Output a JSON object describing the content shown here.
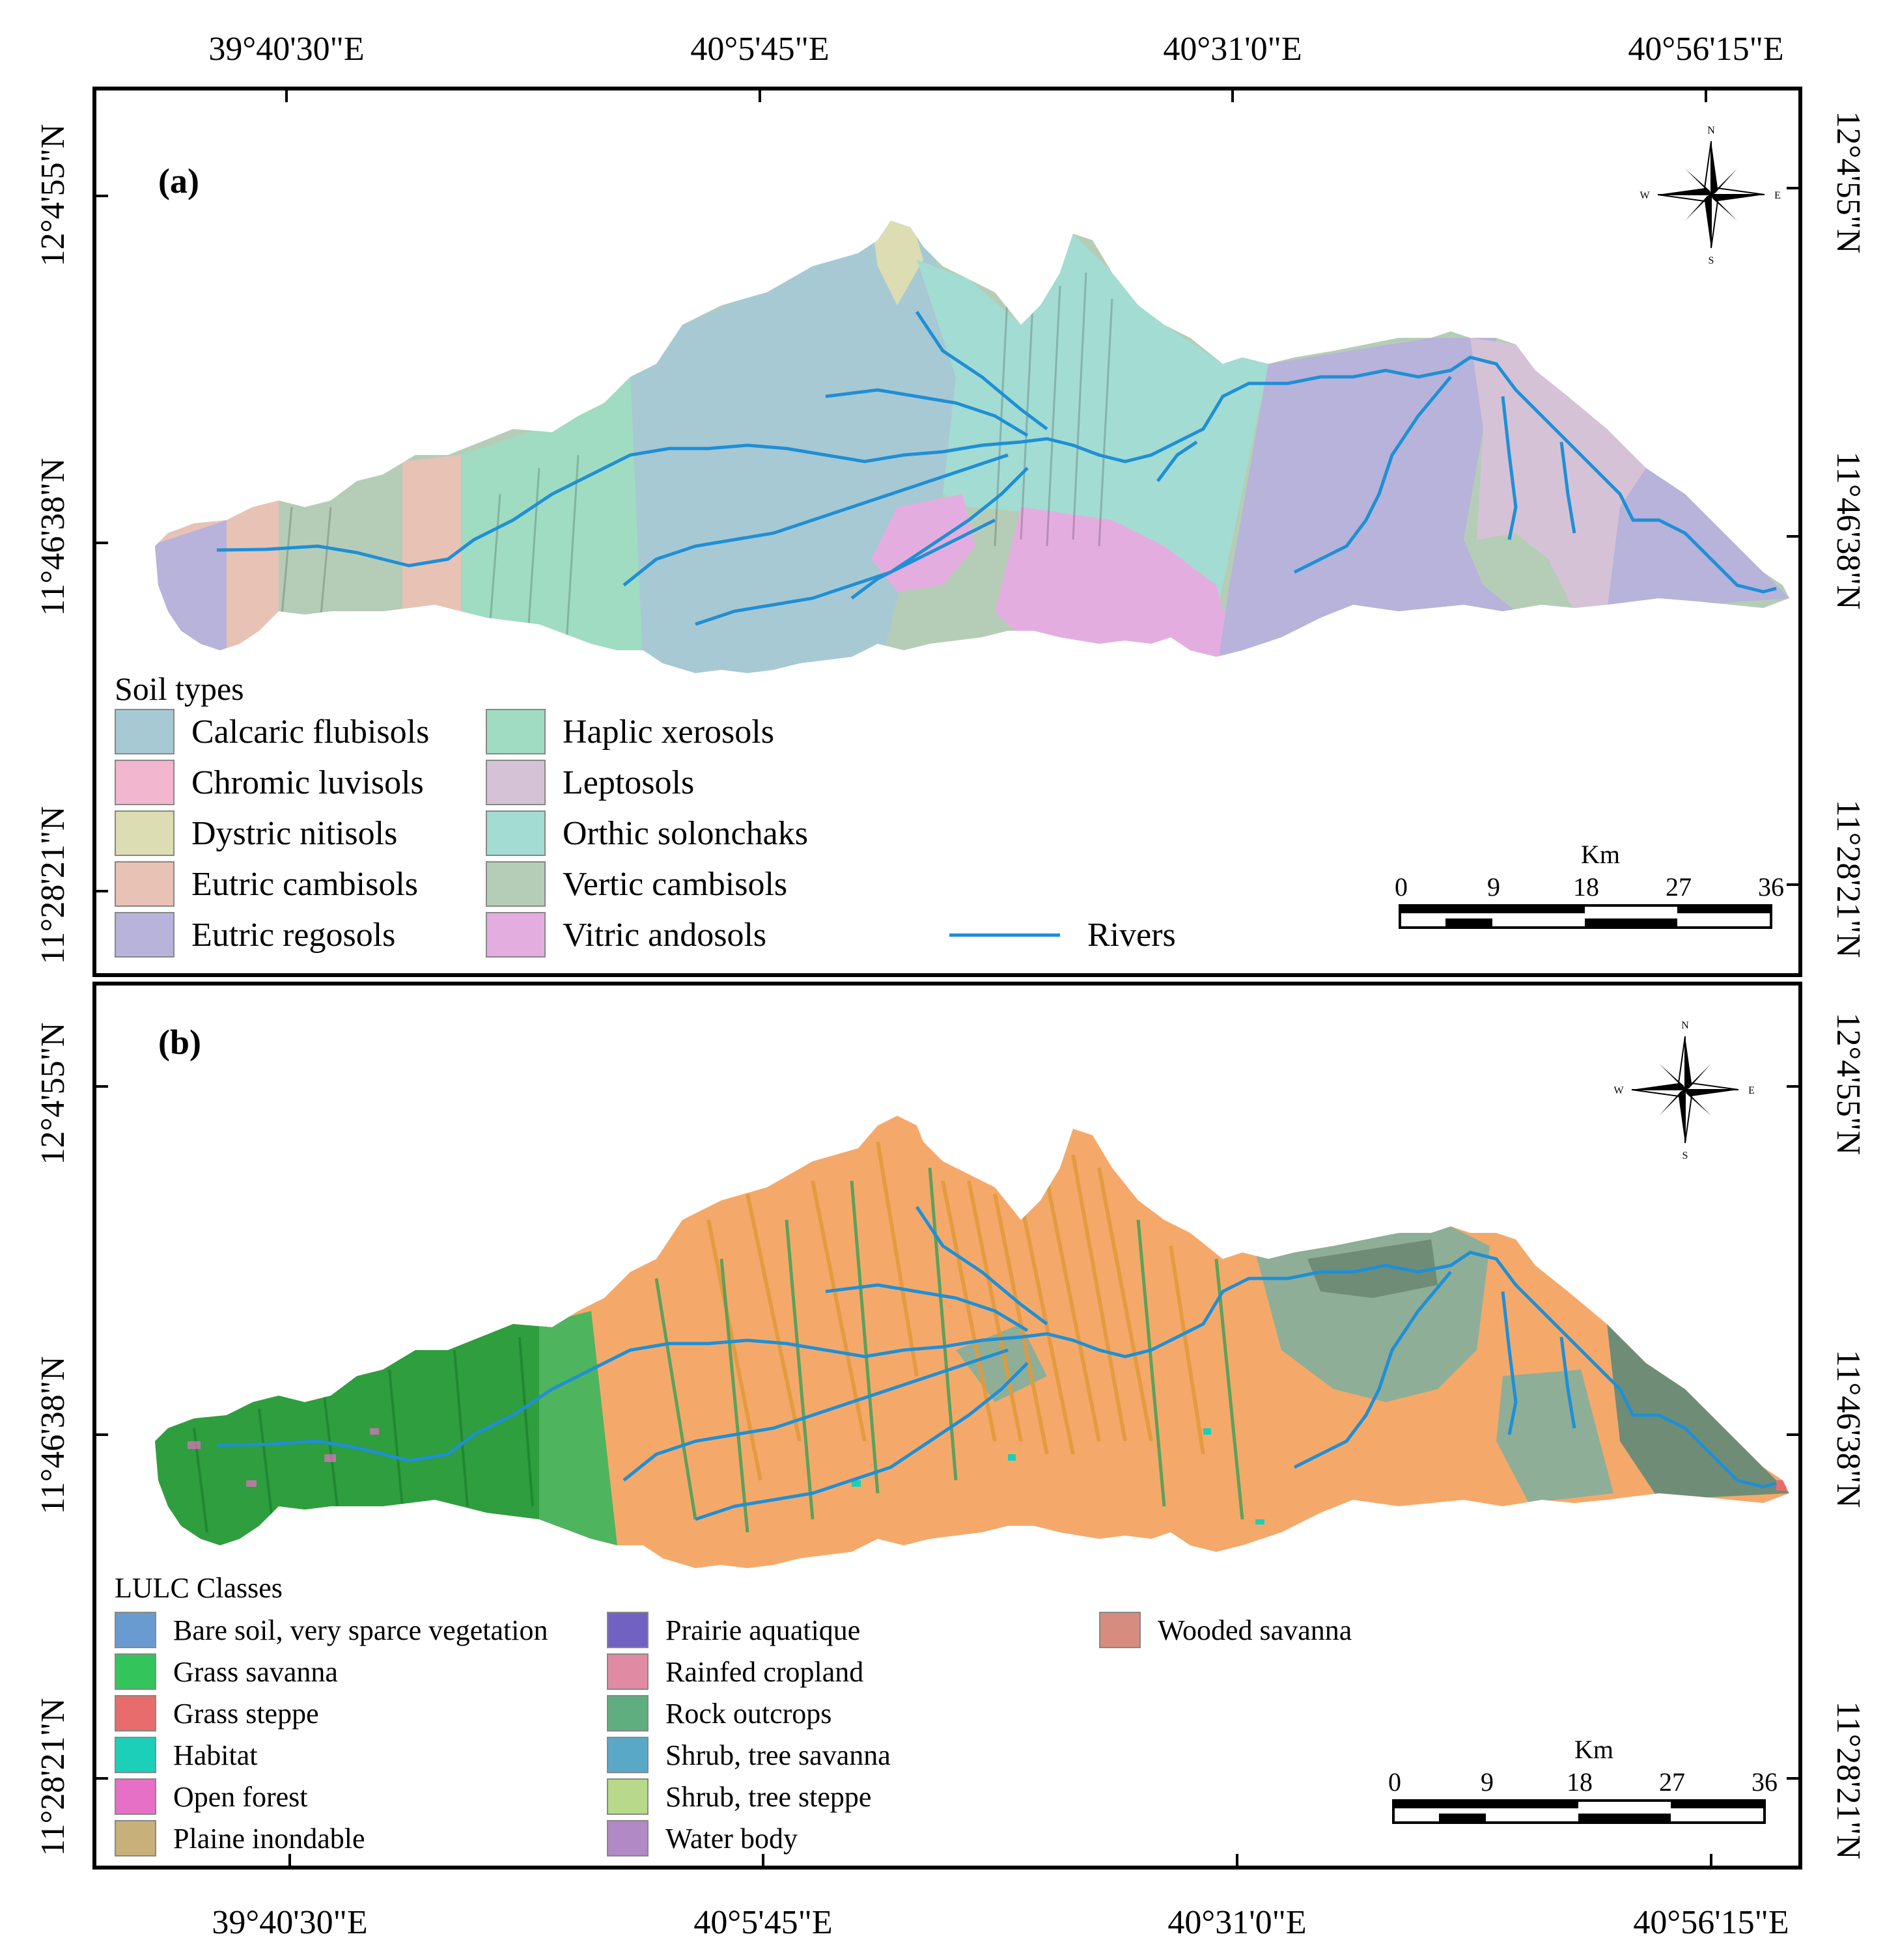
{
  "coordinates": {
    "top_longitudes": [
      "39°40'30\"E",
      "40°5'45\"E",
      "40°31'0\"E",
      "40°56'15\"E"
    ],
    "bottom_longitudes": [
      "39°40'30\"E",
      "40°5'45\"E",
      "40°31'0\"E",
      "40°56'15\"E"
    ],
    "panel_a_latitudes": [
      "12°4'55\"N",
      "11°46'38\"N",
      "11°28'21\"N"
    ],
    "panel_b_latitudes": [
      "12°4'55\"N",
      "11°46'38\"N",
      "11°28'21\"N"
    ]
  },
  "panel_a": {
    "label": "(a)",
    "legend_title": "Soil types",
    "legend_items": [
      {
        "label": "Calcaric flubisols",
        "color": "#a7c9d3"
      },
      {
        "label": "Chromic luvisols",
        "color": "#f2b6cf"
      },
      {
        "label": "Dystric nitisols",
        "color": "#dcddb3"
      },
      {
        "label": " Eutric cambisols",
        "color": "#e7c2b5"
      },
      {
        "label": "Eutric regosols",
        "color": "#b7b3da"
      },
      {
        "label": "Haplic xerosols",
        "color": "#9fdcc2"
      },
      {
        "label": "Leptosols",
        "color": "#d6c2d6"
      },
      {
        "label": "Orthic solonchaks",
        "color": "#a3dcd3"
      },
      {
        "label": "Vertic cambisols",
        "color": "#b5cdb7"
      },
      {
        "label": "Vitric andosols",
        "color": "#e4ade0"
      }
    ],
    "rivers_label": "Rivers",
    "river_color": "#1f8fd6",
    "scale": {
      "unit": "Km",
      "ticks": [
        "0",
        "9",
        "18",
        "27",
        "36"
      ]
    },
    "compass": {
      "n": "N",
      "s": "S",
      "e": "E",
      "w": "W"
    }
  },
  "panel_b": {
    "label": "(b)",
    "legend_title": "LULC Classes",
    "legend_items": [
      {
        "label": "Bare soil, very sparce vegetation",
        "color": "#6a9bd0"
      },
      {
        "label": "Grass savanna",
        "color": "#33c45c"
      },
      {
        "label": "Grass steppe",
        "color": "#e86c6c"
      },
      {
        "label": "Habitat",
        "color": "#1ccfb8"
      },
      {
        "label": "Open forest",
        "color": "#e670c6"
      },
      {
        "label": "Plaine inondable",
        "color": "#c8b07a"
      },
      {
        "label": "Prairie aquatique",
        "color": "#7162c2"
      },
      {
        "label": "Rainfed cropland",
        "color": "#e08aa3"
      },
      {
        "label": "Rock outcrops",
        "color": "#5fae80"
      },
      {
        "label": "Shrub, tree savanna",
        "color": "#5aa8c8"
      },
      {
        "label": "Shrub, tree steppe",
        "color": "#b9d98a"
      },
      {
        "label": "Water body",
        "color": "#b189c5"
      },
      {
        "label": "Wooded savanna",
        "color": "#d68c7e"
      }
    ],
    "scale": {
      "unit": "Km",
      "ticks": [
        "0",
        "9",
        "18",
        "27",
        "36"
      ]
    },
    "compass": {
      "n": "N",
      "s": "S",
      "e": "E",
      "w": "W"
    },
    "map_colors": {
      "orange": "#f4a96b",
      "dark_orange": "#e39a3c",
      "green": "#2e9e3f",
      "grey_green": "#8fae97",
      "dark_grey": "#6f8d76"
    }
  }
}
